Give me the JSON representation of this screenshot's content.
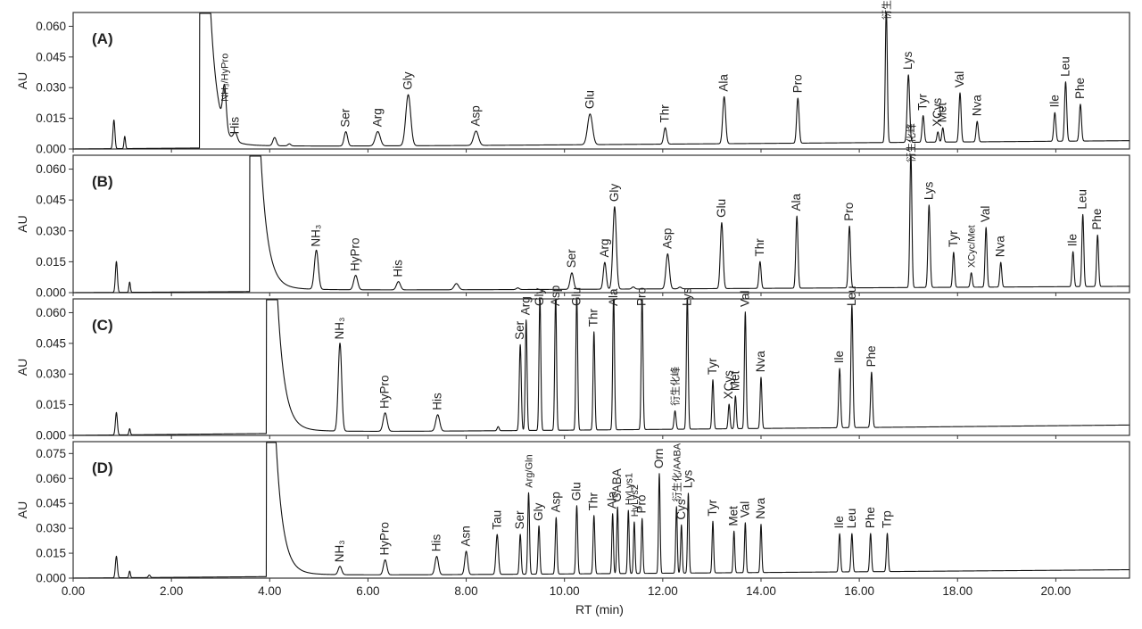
{
  "chart_data": {
    "type": "line",
    "title": "",
    "xlabel": "RT (min)",
    "ylabel": "AU",
    "xlim": [
      0,
      21.5
    ],
    "xticks": [
      "0.00",
      "2.00",
      "4.00",
      "6.00",
      "8.00",
      "10.00",
      "12.00",
      "14.00",
      "16.00",
      "18.00",
      "20.00"
    ],
    "panels": [
      {
        "label": "(A)",
        "ylim": [
          0,
          0.065
        ],
        "yticks": [
          "0.000",
          "0.015",
          "0.030",
          "0.045",
          "0.060"
        ],
        "baseline": [
          [
            0,
            0.0
          ],
          [
            21.5,
            0.004
          ]
        ],
        "solvent_front": {
          "rt": 2.6,
          "tail_to": 3.05
        },
        "peaks": [
          {
            "label": "",
            "rt": 0.83,
            "height": 0.014,
            "width": 0.02
          },
          {
            "label": "",
            "rt": 1.05,
            "height": 0.006,
            "width": 0.015
          },
          {
            "label": "NH₃/HyPro",
            "rt": 3.08,
            "height": 0.02,
            "width": 0.035
          },
          {
            "label": "His",
            "rt": 3.3,
            "height": 0.004,
            "width": 0.04
          },
          {
            "label": "",
            "rt": 4.1,
            "height": 0.004,
            "width": 0.035
          },
          {
            "label": "",
            "rt": 4.4,
            "height": 0.001,
            "width": 0.03
          },
          {
            "label": "Ser",
            "rt": 5.55,
            "height": 0.007,
            "width": 0.035
          },
          {
            "label": "Arg",
            "rt": 6.2,
            "height": 0.007,
            "width": 0.05
          },
          {
            "label": "Gly",
            "rt": 6.82,
            "height": 0.025,
            "width": 0.05
          },
          {
            "label": "Asp",
            "rt": 8.2,
            "height": 0.007,
            "width": 0.05
          },
          {
            "label": "Glu",
            "rt": 10.52,
            "height": 0.015,
            "width": 0.05
          },
          {
            "label": "Thr",
            "rt": 12.05,
            "height": 0.008,
            "width": 0.03
          },
          {
            "label": "Ala",
            "rt": 13.25,
            "height": 0.023,
            "width": 0.03
          },
          {
            "label": "Pro",
            "rt": 14.75,
            "height": 0.022,
            "width": 0.025
          },
          {
            "label": "衍生化峰",
            "rt": 16.55,
            "height": 0.066,
            "width": 0.02
          },
          {
            "label": "Lys",
            "rt": 17.0,
            "height": 0.033,
            "width": 0.025
          },
          {
            "label": "Tyr",
            "rt": 17.3,
            "height": 0.013,
            "width": 0.022
          },
          {
            "label": "XCys",
            "rt": 17.6,
            "height": 0.005,
            "width": 0.02
          },
          {
            "label": "Met",
            "rt": 17.7,
            "height": 0.007,
            "width": 0.02
          },
          {
            "label": "Val",
            "rt": 18.05,
            "height": 0.024,
            "width": 0.022
          },
          {
            "label": "Nva",
            "rt": 18.4,
            "height": 0.01,
            "width": 0.022
          },
          {
            "label": "Ile",
            "rt": 19.98,
            "height": 0.014,
            "width": 0.022
          },
          {
            "label": "Leu",
            "rt": 20.2,
            "height": 0.029,
            "width": 0.022
          },
          {
            "label": "Phe",
            "rt": 20.5,
            "height": 0.018,
            "width": 0.022
          }
        ]
      },
      {
        "label": "(B)",
        "ylim": [
          0,
          0.065
        ],
        "yticks": [
          "0.000",
          "0.015",
          "0.030",
          "0.045",
          "0.060"
        ],
        "baseline": [
          [
            0,
            0.0
          ],
          [
            21.5,
            0.003
          ]
        ],
        "solvent_front": {
          "rt": 3.62,
          "tail_to": 4.9
        },
        "peaks": [
          {
            "label": "",
            "rt": 0.88,
            "height": 0.015,
            "width": 0.02
          },
          {
            "label": "",
            "rt": 1.15,
            "height": 0.005,
            "width": 0.015
          },
          {
            "label": "NH₃",
            "rt": 4.95,
            "height": 0.019,
            "width": 0.04
          },
          {
            "label": "HyPro",
            "rt": 5.75,
            "height": 0.007,
            "width": 0.04
          },
          {
            "label": "His",
            "rt": 6.62,
            "height": 0.004,
            "width": 0.04
          },
          {
            "label": "",
            "rt": 7.8,
            "height": 0.003,
            "width": 0.045
          },
          {
            "label": "",
            "rt": 9.05,
            "height": 0.0008,
            "width": 0.03
          },
          {
            "label": "Ser",
            "rt": 10.15,
            "height": 0.008,
            "width": 0.035
          },
          {
            "label": "Arg",
            "rt": 10.82,
            "height": 0.013,
            "width": 0.03
          },
          {
            "label": "Gly",
            "rt": 11.02,
            "height": 0.04,
            "width": 0.035
          },
          {
            "label": "",
            "rt": 11.4,
            "height": 0.001,
            "width": 0.03
          },
          {
            "label": "Asp",
            "rt": 12.1,
            "height": 0.017,
            "width": 0.035
          },
          {
            "label": "",
            "rt": 12.35,
            "height": 0.0008,
            "width": 0.03
          },
          {
            "label": "Glu",
            "rt": 13.2,
            "height": 0.032,
            "width": 0.028
          },
          {
            "label": "Thr",
            "rt": 13.98,
            "height": 0.013,
            "width": 0.022
          },
          {
            "label": "Ala",
            "rt": 14.73,
            "height": 0.035,
            "width": 0.022
          },
          {
            "label": "Pro",
            "rt": 15.8,
            "height": 0.03,
            "width": 0.022
          },
          {
            "label": "衍生化峰",
            "rt": 17.05,
            "height": 0.066,
            "width": 0.02
          },
          {
            "label": "Lys",
            "rt": 17.42,
            "height": 0.04,
            "width": 0.022
          },
          {
            "label": "Tyr",
            "rt": 17.92,
            "height": 0.017,
            "width": 0.02
          },
          {
            "label": "XCyc/Met",
            "rt": 18.28,
            "height": 0.007,
            "width": 0.02
          },
          {
            "label": "Val",
            "rt": 18.58,
            "height": 0.029,
            "width": 0.02
          },
          {
            "label": "Nva",
            "rt": 18.88,
            "height": 0.012,
            "width": 0.02
          },
          {
            "label": "Ile",
            "rt": 20.35,
            "height": 0.017,
            "width": 0.02
          },
          {
            "label": "Leu",
            "rt": 20.55,
            "height": 0.035,
            "width": 0.02
          },
          {
            "label": "Phe",
            "rt": 20.85,
            "height": 0.025,
            "width": 0.02
          }
        ]
      },
      {
        "label": "(C)",
        "ylim": [
          0,
          0.065
        ],
        "yticks": [
          "0.000",
          "0.015",
          "0.030",
          "0.045",
          "0.060"
        ],
        "baseline": [
          [
            0,
            0.0
          ],
          [
            21.5,
            0.005
          ]
        ],
        "solvent_front": {
          "rt": 3.96,
          "tail_to": 5.2
        },
        "peaks": [
          {
            "label": "",
            "rt": 0.88,
            "height": 0.011,
            "width": 0.02
          },
          {
            "label": "",
            "rt": 1.15,
            "height": 0.003,
            "width": 0.015
          },
          {
            "label": "NH₃",
            "rt": 5.43,
            "height": 0.043,
            "width": 0.035
          },
          {
            "label": "HyPro",
            "rt": 6.35,
            "height": 0.009,
            "width": 0.04
          },
          {
            "label": "His",
            "rt": 7.42,
            "height": 0.008,
            "width": 0.04
          },
          {
            "label": "",
            "rt": 8.65,
            "height": 0.002,
            "width": 0.02
          },
          {
            "label": "Ser",
            "rt": 9.1,
            "height": 0.042,
            "width": 0.02
          },
          {
            "label": "Arg",
            "rt": 9.22,
            "height": 0.054,
            "width": 0.018
          },
          {
            "label": "Gly",
            "rt": 9.5,
            "height": 0.066,
            "width": 0.018
          },
          {
            "label": "Asp",
            "rt": 9.82,
            "height": 0.066,
            "width": 0.018
          },
          {
            "label": "Glu",
            "rt": 10.25,
            "height": 0.066,
            "width": 0.018
          },
          {
            "label": "Thr",
            "rt": 10.6,
            "height": 0.048,
            "width": 0.018
          },
          {
            "label": "Ala",
            "rt": 11.0,
            "height": 0.066,
            "width": 0.018
          },
          {
            "label": "Pro",
            "rt": 11.58,
            "height": 0.066,
            "width": 0.018
          },
          {
            "label": "衍生化峰",
            "rt": 12.25,
            "height": 0.009,
            "width": 0.02
          },
          {
            "label": "Lys",
            "rt": 12.5,
            "height": 0.066,
            "width": 0.018
          },
          {
            "label": "Tyr",
            "rt": 13.02,
            "height": 0.024,
            "width": 0.018
          },
          {
            "label": "XCys",
            "rt": 13.35,
            "height": 0.012,
            "width": 0.018
          },
          {
            "label": "Met",
            "rt": 13.48,
            "height": 0.016,
            "width": 0.018
          },
          {
            "label": "Val",
            "rt": 13.68,
            "height": 0.057,
            "width": 0.018
          },
          {
            "label": "Nva",
            "rt": 14.0,
            "height": 0.025,
            "width": 0.018
          },
          {
            "label": "Ile",
            "rt": 15.6,
            "height": 0.029,
            "width": 0.02
          },
          {
            "label": "Leu",
            "rt": 15.85,
            "height": 0.06,
            "width": 0.02
          },
          {
            "label": "Phe",
            "rt": 16.25,
            "height": 0.027,
            "width": 0.02
          }
        ]
      },
      {
        "label": "(D)",
        "ylim": [
          0,
          0.08
        ],
        "yticks": [
          "0.000",
          "0.015",
          "0.030",
          "0.045",
          "0.060",
          "0.075"
        ],
        "baseline": [
          [
            0,
            0.0
          ],
          [
            21.5,
            0.005
          ]
        ],
        "solvent_front": {
          "rt": 3.96,
          "tail_to": 5.0
        },
        "peaks": [
          {
            "label": "",
            "rt": 0.88,
            "height": 0.013,
            "width": 0.02
          },
          {
            "label": "",
            "rt": 1.15,
            "height": 0.004,
            "width": 0.015
          },
          {
            "label": "",
            "rt": 1.55,
            "height": 0.0015,
            "width": 0.02
          },
          {
            "label": "NH₃",
            "rt": 5.43,
            "height": 0.005,
            "width": 0.035
          },
          {
            "label": "HyPro",
            "rt": 6.35,
            "height": 0.009,
            "width": 0.035
          },
          {
            "label": "His",
            "rt": 7.4,
            "height": 0.011,
            "width": 0.035
          },
          {
            "label": "Asn",
            "rt": 8.0,
            "height": 0.014,
            "width": 0.03
          },
          {
            "label": "Tau",
            "rt": 8.63,
            "height": 0.024,
            "width": 0.025
          },
          {
            "label": "Ser",
            "rt": 9.1,
            "height": 0.024,
            "width": 0.018
          },
          {
            "label": "Arg/Gln",
            "rt": 9.27,
            "height": 0.049,
            "width": 0.018
          },
          {
            "label": "Gly",
            "rt": 9.48,
            "height": 0.029,
            "width": 0.018
          },
          {
            "label": "Asp",
            "rt": 9.83,
            "height": 0.034,
            "width": 0.018
          },
          {
            "label": "Glu",
            "rt": 10.25,
            "height": 0.041,
            "width": 0.018
          },
          {
            "label": "Thr",
            "rt": 10.6,
            "height": 0.035,
            "width": 0.018
          },
          {
            "label": "Ala",
            "rt": 10.98,
            "height": 0.036,
            "width": 0.016
          },
          {
            "label": "GABA",
            "rt": 11.08,
            "height": 0.04,
            "width": 0.016
          },
          {
            "label": "HyLys1",
            "rt": 11.3,
            "height": 0.038,
            "width": 0.016
          },
          {
            "label": "HyLys2",
            "rt": 11.42,
            "height": 0.031,
            "width": 0.016
          },
          {
            "label": "Pro",
            "rt": 11.58,
            "height": 0.033,
            "width": 0.016
          },
          {
            "label": "Orn",
            "rt": 11.93,
            "height": 0.06,
            "width": 0.016
          },
          {
            "label": "衍生化/AABA",
            "rt": 12.28,
            "height": 0.04,
            "width": 0.016
          },
          {
            "label": "Cys",
            "rt": 12.38,
            "height": 0.029,
            "width": 0.016
          },
          {
            "label": "Lys",
            "rt": 12.52,
            "height": 0.048,
            "width": 0.016
          },
          {
            "label": "Tyr",
            "rt": 13.02,
            "height": 0.031,
            "width": 0.016
          },
          {
            "label": "Met",
            "rt": 13.45,
            "height": 0.025,
            "width": 0.016
          },
          {
            "label": "Val",
            "rt": 13.68,
            "height": 0.03,
            "width": 0.016
          },
          {
            "label": "Nva",
            "rt": 14.0,
            "height": 0.029,
            "width": 0.016
          },
          {
            "label": "Ile",
            "rt": 15.6,
            "height": 0.023,
            "width": 0.018
          },
          {
            "label": "Leu",
            "rt": 15.85,
            "height": 0.023,
            "width": 0.018
          },
          {
            "label": "Phe",
            "rt": 16.23,
            "height": 0.023,
            "width": 0.018
          },
          {
            "label": "Trp",
            "rt": 16.57,
            "height": 0.023,
            "width": 0.018
          }
        ]
      }
    ]
  }
}
